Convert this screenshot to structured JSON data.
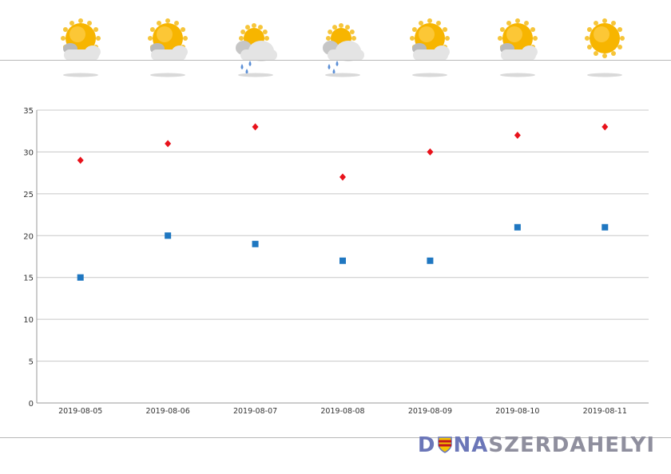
{
  "weather_icons": [
    "sun-cloud-icon",
    "sun-cloud-icon",
    "rain-cloud-icon",
    "rain-cloud-icon",
    "sun-cloud-icon",
    "sun-cloud-icon",
    "sun-icon"
  ],
  "chart_data": {
    "type": "scatter",
    "categories": [
      "2019-08-05",
      "2019-08-06",
      "2019-08-07",
      "2019-08-08",
      "2019-08-09",
      "2019-08-10",
      "2019-08-11"
    ],
    "series": [
      {
        "values": [
          29,
          31,
          33,
          27,
          30,
          32,
          33
        ],
        "color": "#e8121b",
        "marker": "diamond"
      },
      {
        "values": [
          15,
          20,
          19,
          17,
          17,
          21,
          21
        ],
        "color": "#1f77c1",
        "marker": "square"
      }
    ],
    "ylim": [
      0,
      35
    ],
    "yticks": [
      "0",
      "5",
      "10",
      "15",
      "20",
      "25",
      "30",
      "35"
    ],
    "grid": true
  },
  "logo": {
    "part1": "D",
    "part2": "NA",
    "part3": "SZERDAHELYI"
  },
  "colors": {
    "gridline": "#c8c8c8",
    "axis": "#9a9a9a",
    "sun": "#f7b500",
    "cloud": "#e4e4e4",
    "rain": "#5b8fd6"
  }
}
